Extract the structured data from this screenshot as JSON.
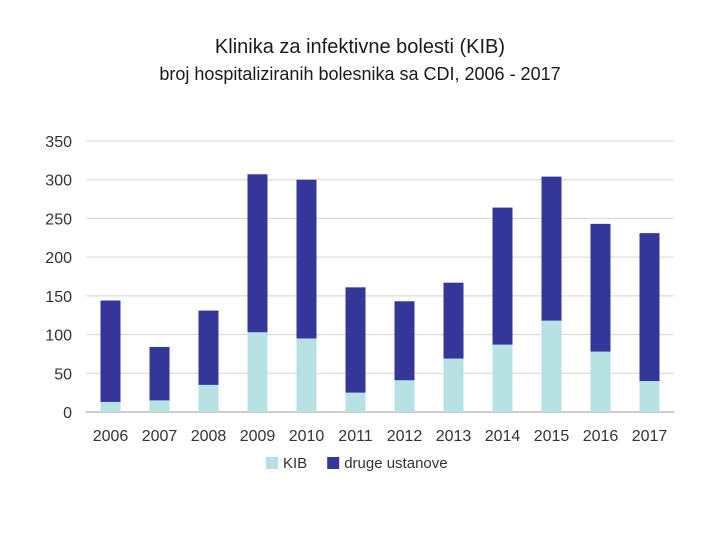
{
  "chart_data": {
    "type": "bar",
    "stacked": true,
    "title": "Klinika za infektivne bolesti (KIB)",
    "subtitle": "broj hospitaliziranih bolesnika sa CDI, 2006 - 2017",
    "categories": [
      "2006",
      "2007",
      "2008",
      "2009",
      "2010",
      "2011",
      "2012",
      "2013",
      "2014",
      "2015",
      "2016",
      "2017"
    ],
    "series": [
      {
        "name": "KIB",
        "color": "#b7e1e2",
        "values": [
          13,
          15,
          35,
          103,
          95,
          25,
          41,
          69,
          87,
          118,
          78,
          40
        ]
      },
      {
        "name": "druge ustanove",
        "color": "#35369a",
        "values": [
          131,
          69,
          96,
          204,
          205,
          136,
          102,
          98,
          177,
          186,
          165,
          191
        ]
      }
    ],
    "ylim": [
      0,
      350
    ],
    "yticks": [
      0,
      50,
      100,
      150,
      200,
      250,
      300,
      350
    ],
    "grid": true,
    "legend": "bottom-center",
    "xlabel": "",
    "ylabel": ""
  }
}
